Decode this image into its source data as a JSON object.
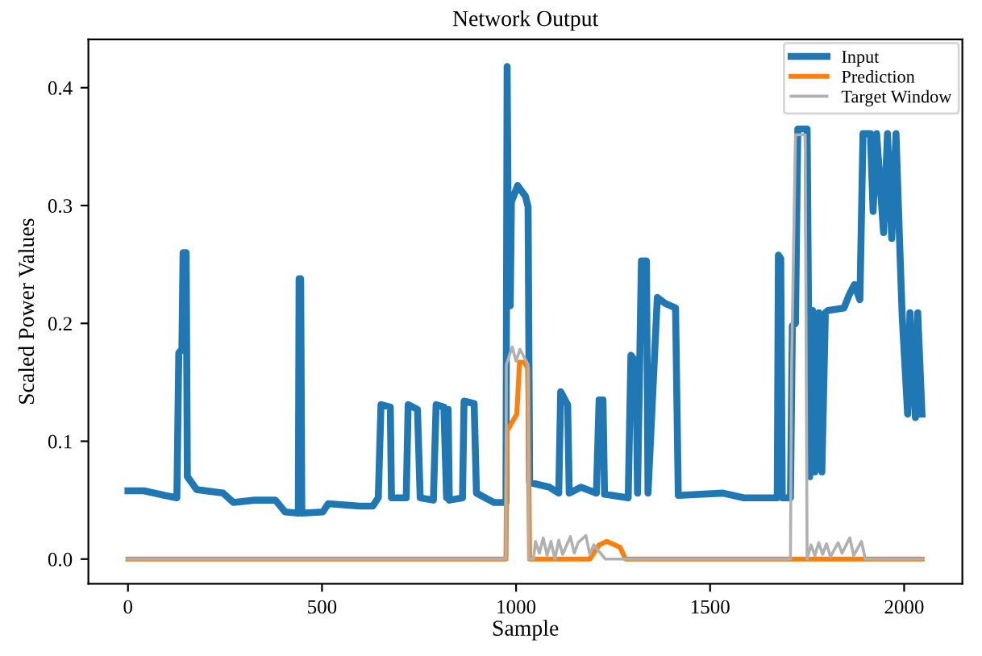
{
  "chart_data": {
    "type": "line",
    "title": "Network Output",
    "xlabel": "Sample",
    "ylabel": "Scaled Power Values",
    "xlim": [
      -102,
      2150
    ],
    "ylim": [
      -0.021,
      0.441
    ],
    "xticks": [
      0,
      500,
      1000,
      1500,
      2000
    ],
    "yticks": [
      {
        "value": 0,
        "label": "0.0"
      },
      0.1,
      0.2,
      0.3,
      0.4
    ],
    "grid": false,
    "legend": "top right",
    "series": [
      {
        "name": "Input",
        "color": "#1f77b4",
        "x": [
          0,
          41,
          95,
          126,
          131,
          139,
          142,
          150,
          153,
          177,
          245,
          272,
          326,
          380,
          405,
          439,
          441,
          445,
          448,
          502,
          516,
          597,
          631,
          645,
          652,
          676,
          679,
          717,
          722,
          746,
          753,
          787,
          794,
          814,
          821,
          825,
          828,
          862,
          866,
          892,
          898,
          943,
          974,
          977,
          981,
          985,
          988,
          1004,
          1024,
          1031,
          1035,
          1086,
          1110,
          1115,
          1133,
          1137,
          1167,
          1207,
          1214,
          1224,
          1228,
          1289,
          1296,
          1309,
          1313,
          1323,
          1336,
          1340,
          1364,
          1384,
          1411,
          1418,
          1533,
          1587,
          1673,
          1676,
          1682,
          1686,
          1707,
          1712,
          1720,
          1726,
          1737,
          1750,
          1757,
          1764,
          1770,
          1780,
          1788,
          1797,
          1804,
          1845,
          1858,
          1872,
          1886,
          1894,
          1913,
          1920,
          1929,
          1947,
          1957,
          1968,
          1979,
          1988,
          1995,
          2009,
          2015,
          2029,
          2035,
          2046
        ],
        "values": [
          0.058,
          0.058,
          0.054,
          0.052,
          0.175,
          0.178,
          0.26,
          0.26,
          0.07,
          0.059,
          0.056,
          0.048,
          0.05,
          0.05,
          0.04,
          0.039,
          0.238,
          0.238,
          0.039,
          0.04,
          0.047,
          0.045,
          0.045,
          0.052,
          0.131,
          0.129,
          0.052,
          0.052,
          0.131,
          0.127,
          0.052,
          0.05,
          0.131,
          0.129,
          0.052,
          0.127,
          0.05,
          0.052,
          0.134,
          0.132,
          0.056,
          0.048,
          0.048,
          0.418,
          0.215,
          0.215,
          0.303,
          0.317,
          0.308,
          0.299,
          0.065,
          0.061,
          0.056,
          0.142,
          0.131,
          0.056,
          0.061,
          0.056,
          0.135,
          0.135,
          0.055,
          0.052,
          0.173,
          0.167,
          0.056,
          0.253,
          0.253,
          0.056,
          0.222,
          0.217,
          0.213,
          0.054,
          0.056,
          0.052,
          0.052,
          0.258,
          0.255,
          0.052,
          0.052,
          0.198,
          0.2,
          0.365,
          0.365,
          0.365,
          0.07,
          0.211,
          0.074,
          0.209,
          0.074,
          0.209,
          0.211,
          0.213,
          0.224,
          0.233,
          0.22,
          0.361,
          0.361,
          0.295,
          0.361,
          0.277,
          0.361,
          0.272,
          0.361,
          0.272,
          0.206,
          0.123,
          0.209,
          0.12,
          0.209,
          0.123
        ]
      },
      {
        "name": "Prediction",
        "color": "#ff7f0e",
        "x": [
          0,
          974,
          977,
          1002,
          1009,
          1022,
          1030,
          1035,
          1190,
          1214,
          1234,
          1268,
          1282,
          2046
        ],
        "values": [
          0,
          0,
          0.109,
          0.123,
          0.167,
          0.167,
          0.162,
          0,
          0,
          0.012,
          0.015,
          0.01,
          0,
          0
        ]
      },
      {
        "name": "Target Window",
        "color": "#b0b0b0",
        "x": [
          0,
          974,
          975,
          990,
          1000,
          1010,
          1031,
          1033,
          1045,
          1050,
          1060,
          1070,
          1080,
          1090,
          1100,
          1110,
          1120,
          1140,
          1150,
          1160,
          1180,
          1190,
          1200,
          1230,
          1707,
          1710,
          1720,
          1745,
          1750,
          1760,
          1770,
          1780,
          1790,
          1800,
          1810,
          1830,
          1840,
          1860,
          1870,
          1890,
          1900,
          2046
        ],
        "values": [
          0,
          0,
          0.165,
          0.18,
          0.168,
          0.178,
          0.165,
          0,
          0,
          0.015,
          0.005,
          0.018,
          0.003,
          0.015,
          0,
          0.016,
          0.004,
          0.019,
          0.005,
          0.014,
          0.02,
          0.004,
          0.012,
          0,
          0,
          0.165,
          0.36,
          0.36,
          0,
          0.012,
          0.003,
          0.014,
          0.004,
          0.013,
          0.002,
          0.014,
          0.005,
          0.018,
          0.003,
          0.015,
          0,
          0
        ]
      }
    ]
  }
}
